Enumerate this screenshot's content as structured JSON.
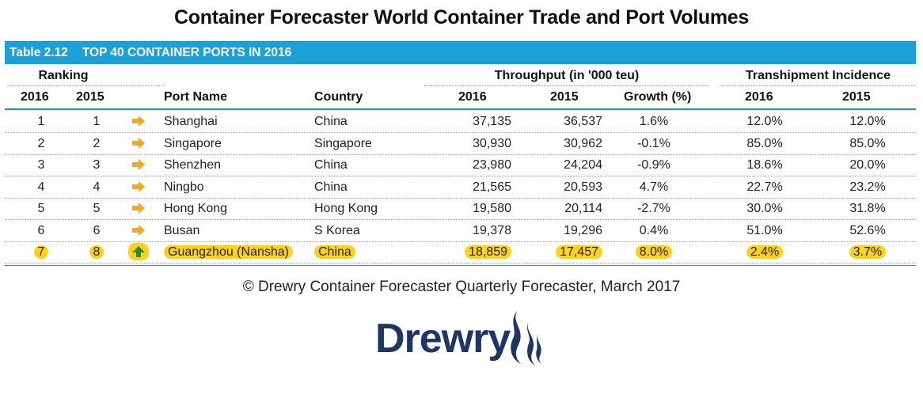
{
  "page_title": "Container Forecaster World Container Trade and Port Volumes",
  "table": {
    "number": "Table 2.12",
    "title": "TOP 40 CONTAINER PORTS IN 2016",
    "group_headers": {
      "ranking": "Ranking",
      "throughput": "Throughput (in '000 teu)",
      "transhipment": "Transhipment Incidence"
    },
    "columns": [
      "2016",
      "2015",
      "",
      "Port Name",
      "Country",
      "2016",
      "2015",
      "Growth (%)",
      "2016",
      "2015"
    ],
    "rows": [
      {
        "rank_2016": "1",
        "rank_2015": "1",
        "trend": "same",
        "port": "Shanghai",
        "country": "China",
        "tp_2016": "37,135",
        "tp_2015": "36,537",
        "growth": "1.6%",
        "ti_2016": "12.0%",
        "ti_2015": "12.0%",
        "highlight": false
      },
      {
        "rank_2016": "2",
        "rank_2015": "2",
        "trend": "same",
        "port": "Singapore",
        "country": "Singapore",
        "tp_2016": "30,930",
        "tp_2015": "30,962",
        "growth": "-0.1%",
        "ti_2016": "85.0%",
        "ti_2015": "85.0%",
        "highlight": false
      },
      {
        "rank_2016": "3",
        "rank_2015": "3",
        "trend": "same",
        "port": "Shenzhen",
        "country": "China",
        "tp_2016": "23,980",
        "tp_2015": "24,204",
        "growth": "-0.9%",
        "ti_2016": "18.6%",
        "ti_2015": "20.0%",
        "highlight": false
      },
      {
        "rank_2016": "4",
        "rank_2015": "4",
        "trend": "same",
        "port": "Ningbo",
        "country": "China",
        "tp_2016": "21,565",
        "tp_2015": "20,593",
        "growth": "4.7%",
        "ti_2016": "22.7%",
        "ti_2015": "23.2%",
        "highlight": false
      },
      {
        "rank_2016": "5",
        "rank_2015": "5",
        "trend": "same",
        "port": "Hong Kong",
        "country": "Hong Kong",
        "tp_2016": "19,580",
        "tp_2015": "20,114",
        "growth": "-2.7%",
        "ti_2016": "30.0%",
        "ti_2015": "31.8%",
        "highlight": false
      },
      {
        "rank_2016": "6",
        "rank_2015": "6",
        "trend": "same",
        "port": "Busan",
        "country": "S Korea",
        "tp_2016": "19,378",
        "tp_2015": "19,296",
        "growth": "0.4%",
        "ti_2016": "51.0%",
        "ti_2015": "52.6%",
        "highlight": false
      },
      {
        "rank_2016": "7",
        "rank_2015": "8",
        "trend": "up",
        "port": "Guangzhou (Nansha)",
        "country": "China",
        "tp_2016": "18,859",
        "tp_2015": "17,457",
        "growth": "8.0%",
        "ti_2016": "2.4%",
        "ti_2015": "3.7%",
        "highlight": true
      }
    ]
  },
  "credit": "© Drewry Container Forecaster Quarterly Forecaster, March 2017",
  "logo": {
    "text": "Drewry",
    "icon": "flame-icon"
  },
  "colors": {
    "banner": "#1ba0d8",
    "same_arrow": "#f6a623",
    "up_arrow": "#2e8b2e",
    "highlight": "#ffd21a",
    "logo": "#1f3566"
  }
}
